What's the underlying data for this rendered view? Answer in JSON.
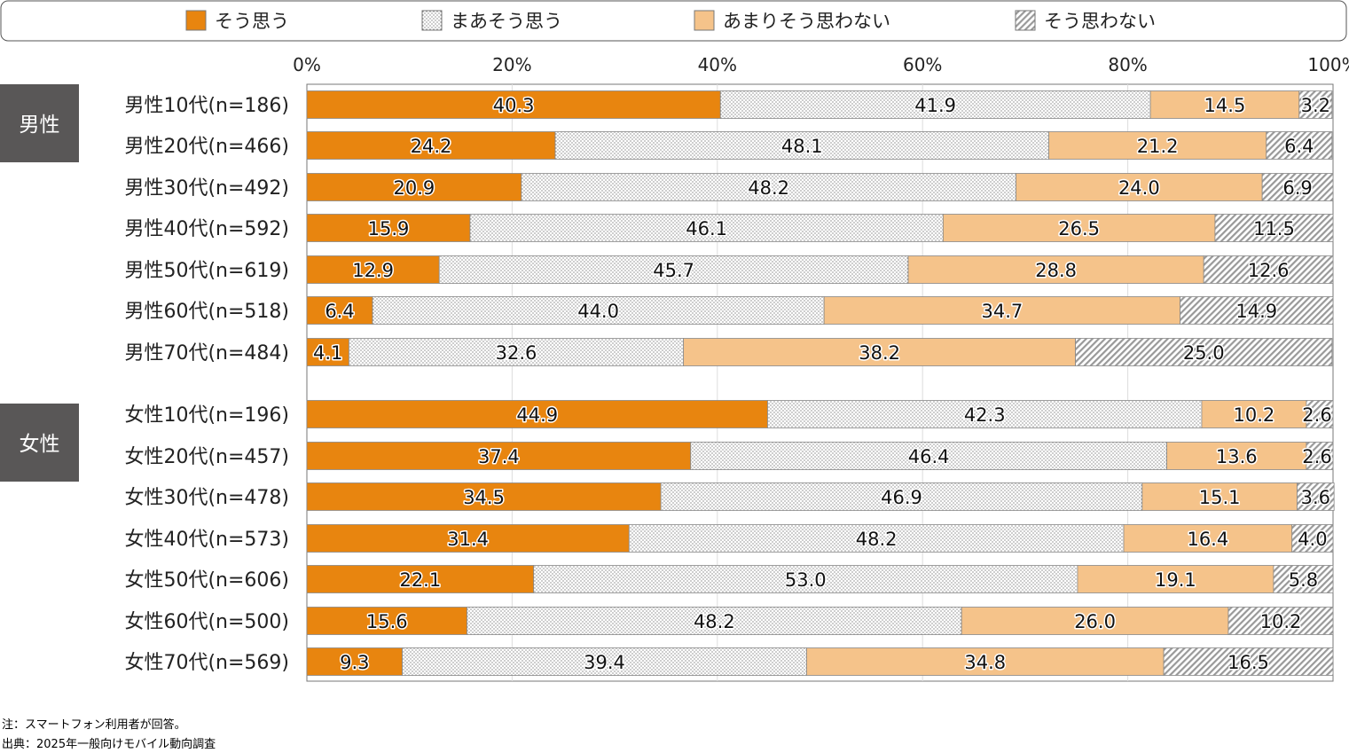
{
  "chart_data": {
    "type": "bar",
    "orientation": "horizontal",
    "stacked": true,
    "percent_axis": true,
    "xlim": [
      0,
      100
    ],
    "x_ticks": [
      "0%",
      "20%",
      "40%",
      "60%",
      "80%",
      "100%"
    ],
    "grid": true,
    "legend_position": "top",
    "series": [
      {
        "name": "そう思う",
        "color": "#E8850F",
        "fill": "solid"
      },
      {
        "name": "まあそう思う",
        "color": "#FFFFFF",
        "fill": "dots"
      },
      {
        "name": "あまりそう思わない",
        "color": "#F5C38A",
        "fill": "solid"
      },
      {
        "name": "そう思わない",
        "color": "#FFFFFF",
        "fill": "hatch"
      }
    ],
    "groups": [
      {
        "label": "男性",
        "rows": [
          {
            "label": "男性10代(n=186)",
            "values": [
              40.3,
              41.9,
              14.5,
              3.2
            ]
          },
          {
            "label": "男性20代(n=466)",
            "values": [
              24.2,
              48.1,
              21.2,
              6.4
            ]
          },
          {
            "label": "男性30代(n=492)",
            "values": [
              20.9,
              48.2,
              24.0,
              6.9
            ]
          },
          {
            "label": "男性40代(n=592)",
            "values": [
              15.9,
              46.1,
              26.5,
              11.5
            ]
          },
          {
            "label": "男性50代(n=619)",
            "values": [
              12.9,
              45.7,
              28.8,
              12.6
            ]
          },
          {
            "label": "男性60代(n=518)",
            "values": [
              6.4,
              44.0,
              34.7,
              14.9
            ]
          },
          {
            "label": "男性70代(n=484)",
            "values": [
              4.1,
              32.6,
              38.2,
              25.0
            ]
          }
        ]
      },
      {
        "label": "女性",
        "rows": [
          {
            "label": "女性10代(n=196)",
            "values": [
              44.9,
              42.3,
              10.2,
              2.6
            ]
          },
          {
            "label": "女性20代(n=457)",
            "values": [
              37.4,
              46.4,
              13.6,
              2.6
            ]
          },
          {
            "label": "女性30代(n=478)",
            "values": [
              34.5,
              46.9,
              15.1,
              3.6
            ]
          },
          {
            "label": "女性40代(n=573)",
            "values": [
              31.4,
              48.2,
              16.4,
              4.0
            ]
          },
          {
            "label": "女性50代(n=606)",
            "values": [
              22.1,
              53.0,
              19.1,
              5.8
            ]
          },
          {
            "label": "女性60代(n=500)",
            "values": [
              15.6,
              48.2,
              26.0,
              10.2
            ]
          },
          {
            "label": "女性70代(n=569)",
            "values": [
              9.3,
              39.4,
              34.8,
              16.5
            ]
          }
        ]
      }
    ],
    "group_label_color": "#595757"
  },
  "notes": {
    "note": "注：スマートフォン利用者が回答。",
    "source": "出典：2025年一般向けモバイル動向調査"
  }
}
